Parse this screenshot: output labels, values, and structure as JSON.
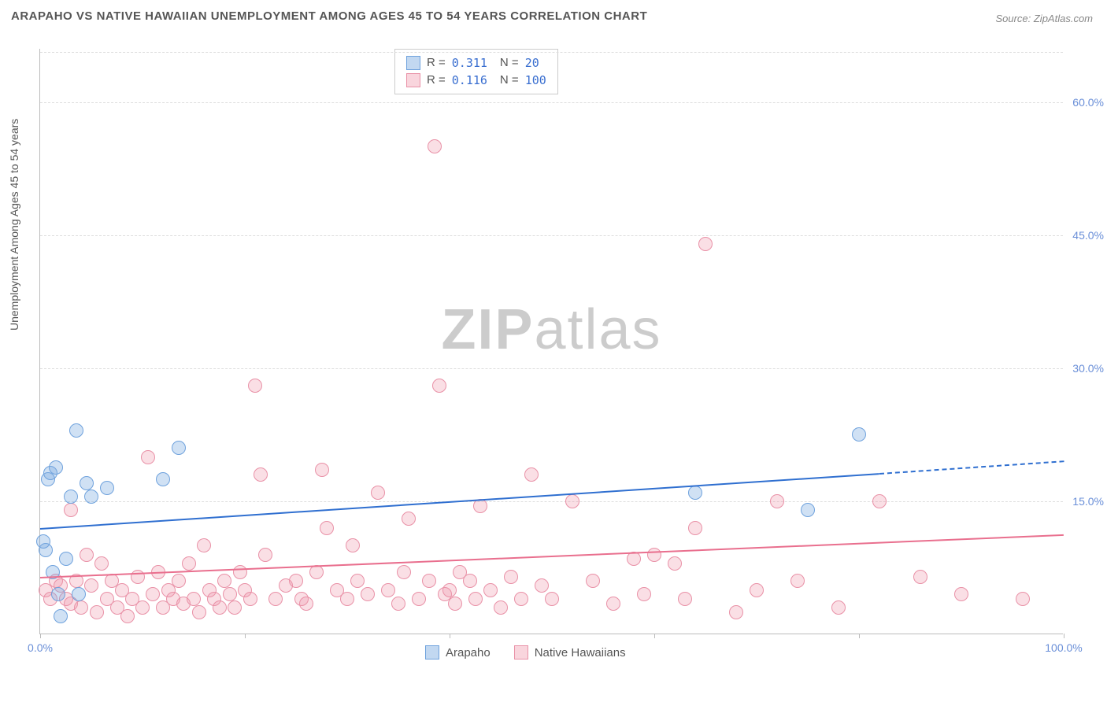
{
  "title": "ARAPAHO VS NATIVE HAWAIIAN UNEMPLOYMENT AMONG AGES 45 TO 54 YEARS CORRELATION CHART",
  "source": "Source: ZipAtlas.com",
  "ylabel": "Unemployment Among Ages 45 to 54 years",
  "watermark_bold": "ZIP",
  "watermark_light": "atlas",
  "chart": {
    "type": "scatter",
    "xlim": [
      0,
      100
    ],
    "ylim": [
      0,
      66
    ],
    "xtick_positions": [
      0,
      20,
      40,
      60,
      80,
      100
    ],
    "xtick_labels": {
      "0": "0.0%",
      "100": "100.0%"
    },
    "ytick_positions": [
      15,
      30,
      45,
      60
    ],
    "ytick_labels": [
      "15.0%",
      "30.0%",
      "45.0%",
      "60.0%"
    ],
    "grid_color": "#dddddd",
    "axis_color": "#bbbbbb",
    "background_color": "#ffffff",
    "label_color": "#6a8fd8",
    "point_radius": 9,
    "series": [
      {
        "name": "Arapaho",
        "fill": "rgba(120,168,224,0.35)",
        "stroke": "#6fa2dd",
        "line_color": "#2f6fd0",
        "R": "0.311",
        "N": "20",
        "trend": {
          "x1": 0,
          "y1": 12,
          "x2": 82,
          "y2": 18.2,
          "x2_dash": 100,
          "y2_dash": 19.6
        },
        "points": [
          [
            0.5,
            9.5
          ],
          [
            0.8,
            17.5
          ],
          [
            1,
            18.2
          ],
          [
            1.5,
            18.8
          ],
          [
            1.2,
            7
          ],
          [
            2,
            2
          ],
          [
            2.5,
            8.5
          ],
          [
            3,
            15.5
          ],
          [
            3.5,
            23
          ],
          [
            4.5,
            17
          ],
          [
            5,
            15.5
          ],
          [
            6.5,
            16.5
          ],
          [
            12,
            17.5
          ],
          [
            13.5,
            21
          ],
          [
            64,
            16
          ],
          [
            75,
            14
          ],
          [
            80,
            22.5
          ],
          [
            3.8,
            4.5
          ],
          [
            0.3,
            10.5
          ],
          [
            1.8,
            4.5
          ]
        ]
      },
      {
        "name": "Native Hawaiians",
        "fill": "rgba(240,150,170,0.30)",
        "stroke": "#e991a7",
        "line_color": "#e96f8e",
        "R": "0.116",
        "N": "100",
        "trend": {
          "x1": 0,
          "y1": 6.5,
          "x2": 100,
          "y2": 11.3
        },
        "points": [
          [
            0.5,
            5
          ],
          [
            1,
            4
          ],
          [
            1.5,
            6
          ],
          [
            2,
            5.5
          ],
          [
            2.5,
            4
          ],
          [
            3,
            3.5
          ],
          [
            3,
            14
          ],
          [
            3.5,
            6
          ],
          [
            4,
            3
          ],
          [
            4.5,
            9
          ],
          [
            5,
            5.5
          ],
          [
            5.5,
            2.5
          ],
          [
            6,
            8
          ],
          [
            6.5,
            4
          ],
          [
            7,
            6
          ],
          [
            7.5,
            3
          ],
          [
            8,
            5
          ],
          [
            8.5,
            2
          ],
          [
            9,
            4
          ],
          [
            9.5,
            6.5
          ],
          [
            10,
            3
          ],
          [
            10.5,
            20
          ],
          [
            11,
            4.5
          ],
          [
            11.5,
            7
          ],
          [
            12,
            3
          ],
          [
            12.5,
            5
          ],
          [
            13,
            4
          ],
          [
            13.5,
            6
          ],
          [
            14,
            3.5
          ],
          [
            14.5,
            8
          ],
          [
            15,
            4
          ],
          [
            15.5,
            2.5
          ],
          [
            16,
            10
          ],
          [
            16.5,
            5
          ],
          [
            17,
            4
          ],
          [
            17.5,
            3
          ],
          [
            18,
            6
          ],
          [
            18.5,
            4.5
          ],
          [
            19,
            3
          ],
          [
            19.5,
            7
          ],
          [
            20,
            5
          ],
          [
            20.5,
            4
          ],
          [
            21,
            28
          ],
          [
            21.5,
            18
          ],
          [
            22,
            9
          ],
          [
            23,
            4
          ],
          [
            24,
            5.5
          ],
          [
            25,
            6
          ],
          [
            25.5,
            4
          ],
          [
            26,
            3.5
          ],
          [
            27,
            7
          ],
          [
            27.5,
            18.5
          ],
          [
            28,
            12
          ],
          [
            29,
            5
          ],
          [
            30,
            4
          ],
          [
            30.5,
            10
          ],
          [
            31,
            6
          ],
          [
            32,
            4.5
          ],
          [
            33,
            16
          ],
          [
            34,
            5
          ],
          [
            35,
            3.5
          ],
          [
            35.5,
            7
          ],
          [
            36,
            13
          ],
          [
            37,
            4
          ],
          [
            38,
            6
          ],
          [
            38.5,
            55
          ],
          [
            39,
            28
          ],
          [
            39.5,
            4.5
          ],
          [
            40,
            5
          ],
          [
            40.5,
            3.5
          ],
          [
            41,
            7
          ],
          [
            42,
            6
          ],
          [
            42.5,
            4
          ],
          [
            43,
            14.5
          ],
          [
            44,
            5
          ],
          [
            45,
            3
          ],
          [
            46,
            6.5
          ],
          [
            47,
            4
          ],
          [
            48,
            18
          ],
          [
            49,
            5.5
          ],
          [
            50,
            4
          ],
          [
            52,
            15
          ],
          [
            54,
            6
          ],
          [
            56,
            3.5
          ],
          [
            58,
            8.5
          ],
          [
            59,
            4.5
          ],
          [
            60,
            9
          ],
          [
            62,
            8
          ],
          [
            63,
            4
          ],
          [
            64,
            12
          ],
          [
            65,
            44
          ],
          [
            68,
            2.5
          ],
          [
            70,
            5
          ],
          [
            72,
            15
          ],
          [
            74,
            6
          ],
          [
            78,
            3
          ],
          [
            82,
            15
          ],
          [
            86,
            6.5
          ],
          [
            90,
            4.5
          ],
          [
            96,
            4
          ]
        ]
      }
    ]
  },
  "legend_top": [
    {
      "swatch_fill": "rgba(120,168,224,0.45)",
      "swatch_stroke": "#6fa2dd",
      "r_label": "R =",
      "r": "0.311",
      "n_label": "N =",
      "n": "  20"
    },
    {
      "swatch_fill": "rgba(240,150,170,0.40)",
      "swatch_stroke": "#e991a7",
      "r_label": "R =",
      "r": "0.116",
      "n_label": "N =",
      "n": "100"
    }
  ],
  "legend_bottom": [
    {
      "swatch_fill": "rgba(120,168,224,0.45)",
      "swatch_stroke": "#6fa2dd",
      "label": "Arapaho"
    },
    {
      "swatch_fill": "rgba(240,150,170,0.40)",
      "swatch_stroke": "#e991a7",
      "label": "Native Hawaiians"
    }
  ]
}
